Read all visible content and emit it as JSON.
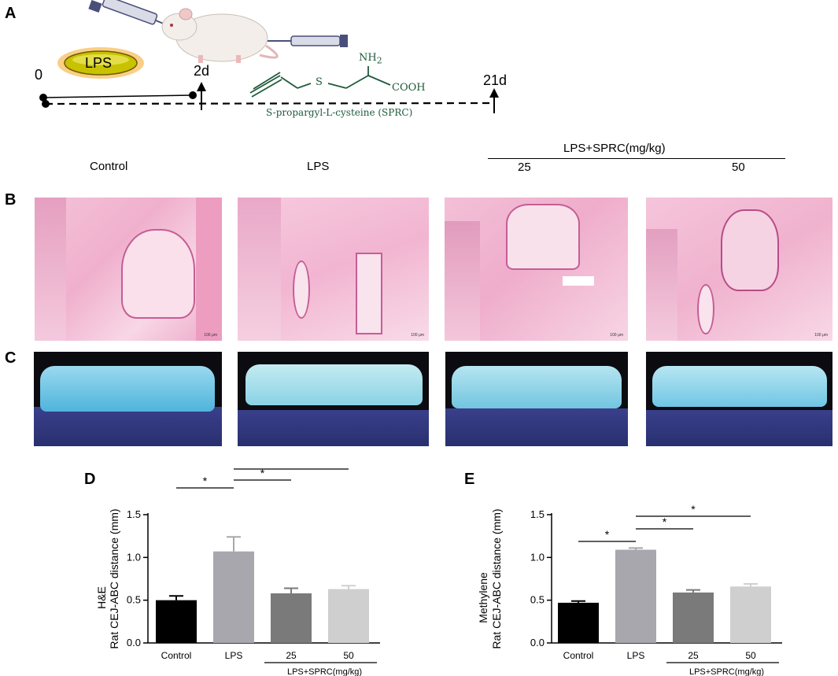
{
  "panel_labels": {
    "a": "A",
    "b": "B",
    "c": "C",
    "d": "D",
    "e": "E"
  },
  "timeline": {
    "badge": "LPS",
    "t0": "0",
    "t2": "2d",
    "t21": "21d",
    "chem_nh2": "NH",
    "chem_nh2_sub": "2",
    "chem_s": "S",
    "chem_cooh": "COOH",
    "compound_name": "S-propargyl-L-cysteine (SPRC)"
  },
  "groups": {
    "control": "Control",
    "lps": "LPS",
    "treatment_header": "LPS+SPRC(mg/kg)",
    "dose_25": "25",
    "dose_50": "50"
  },
  "scale_bar_text": "100 μm",
  "colors": {
    "control_bar": "#000000",
    "lps_bar": "#a7a7ad",
    "sprc25_bar": "#7a7a7a",
    "sprc50_bar": "#cfcfcf",
    "he_pink": "#f1b6d2",
    "tooth_blue": "#6fc6e4"
  },
  "chart_data": [
    {
      "type": "bar",
      "panel": "D",
      "ylabel_top": "H&E",
      "ylabel": "Rat CEJ-ABC distance (mm)",
      "categories": [
        "Control",
        "LPS",
        "25",
        "50"
      ],
      "group_label": "LPS+SPRC(mg/kg)",
      "values": [
        0.5,
        1.07,
        0.58,
        0.63
      ],
      "errors": [
        0.05,
        0.17,
        0.06,
        0.04
      ],
      "ylim": [
        0.0,
        1.5
      ],
      "yticks": [
        "0.0",
        "0.5",
        "1.0",
        "1.5"
      ],
      "significance": [
        {
          "from": 0,
          "to": 1,
          "label": "*"
        },
        {
          "from": 1,
          "to": 2,
          "label": "*"
        },
        {
          "from": 1,
          "to": 3,
          "label": "*"
        }
      ],
      "grid": false
    },
    {
      "type": "bar",
      "panel": "E",
      "ylabel_top": "Methylene",
      "ylabel": "Rat CEJ-ABC distance (mm)",
      "categories": [
        "Control",
        "LPS",
        "25",
        "50"
      ],
      "group_label": "LPS+SPRC(mg/kg)",
      "values": [
        0.47,
        1.09,
        0.59,
        0.66
      ],
      "errors": [
        0.02,
        0.02,
        0.03,
        0.03
      ],
      "ylim": [
        0.0,
        1.5
      ],
      "yticks": [
        "0.0",
        "0.5",
        "1.0",
        "1.5"
      ],
      "significance": [
        {
          "from": 0,
          "to": 1,
          "label": "*"
        },
        {
          "from": 1,
          "to": 2,
          "label": "*"
        },
        {
          "from": 1,
          "to": 3,
          "label": "*"
        }
      ],
      "grid": false
    }
  ]
}
